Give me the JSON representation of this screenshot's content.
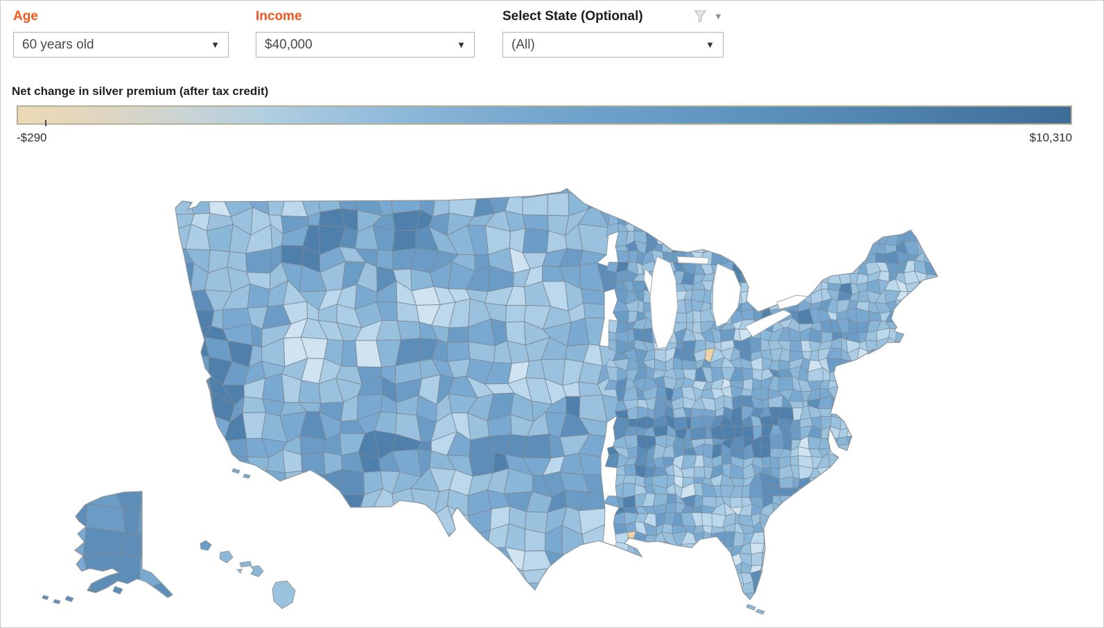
{
  "filters": {
    "age": {
      "label": "Age",
      "value": "60 years old"
    },
    "income": {
      "label": "Income",
      "value": "$40,000"
    },
    "state": {
      "label": "Select State (Optional)",
      "value": "(All)"
    }
  },
  "legend": {
    "title": "Net change in silver premium (after tax credit)",
    "min_label": "-$290",
    "max_label": "$10,310",
    "gradient": [
      "#EDD9B5",
      "#E0D6C0",
      "#CBD4D3",
      "#B3CFE0",
      "#9CC2DE",
      "#8AB5D6",
      "#7AAAD0",
      "#6FA2CA",
      "#679AC5",
      "#5E92BE",
      "#5689B6",
      "#4E80AC",
      "#4677A2",
      "#3D6C97"
    ],
    "border_color": "#b7b099"
  },
  "chart_data": {
    "type": "choropleth",
    "title": "Net change in silver premium (after tax credit)",
    "geography": "United States by county, including Alaska and Hawaii insets",
    "filters": {
      "age": "60 years old",
      "income": "$40,000",
      "state": "(All)"
    },
    "color_scale": {
      "min_value": -290,
      "max_value": 10310,
      "unit": "USD",
      "min_label": "-$290",
      "max_label": "$10,310",
      "min_color": "#EDD9B5",
      "max_color": "#3D6C97"
    },
    "legend_position": "top",
    "observations": "Nearly all counties are shaded blue (premium increase after tax credit); darkest blues appear along the northern California coast, Arizona, Montana, Alaska and the Tennessee/Kentucky belt; a few isolated tan counties (net decrease) such as one in northern Indiana."
  },
  "map": {
    "water_color": "#ffffff",
    "county_border": "#7d8994",
    "coast_border": "#8d97a0",
    "outlier_color": "#ecd2a5",
    "palette": [
      "#cfe3f1",
      "#bcd8ec",
      "#abcde5",
      "#9ac2df",
      "#8ab6d8",
      "#79a9d0",
      "#6b9cc6",
      "#5d8eba",
      "#4f7fab"
    ],
    "icons": {
      "dropdown_caret": "▼",
      "menu_caret": "▼"
    }
  }
}
